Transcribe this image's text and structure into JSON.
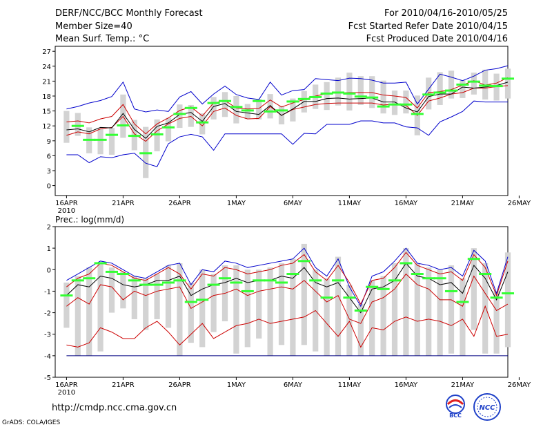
{
  "header": {
    "title": "DERF/NCC/BCC Monthly Forecast",
    "member_size": "Member Size=40",
    "variable": "Mean Surf. Temp.: °C",
    "forecast_range": "For 2010/04/16-2010/05/25",
    "started_date": "Fcst Started Refer Date 2010/04/15",
    "produced_date": "Fcst Produced Date 2010/04/16"
  },
  "footer": {
    "url": "http://cmdp.ncc.cma.gov.cn",
    "credit": "GrADS: COLA/IGES"
  },
  "logos": {
    "left_text": "BCC",
    "right_text": "NCC"
  },
  "colors": {
    "envelope": "#0000cc",
    "band": "#cc0000",
    "mean": "#000000",
    "observed": "#33ff33",
    "box": "#d3d3d3",
    "baseline": "#000080"
  },
  "chart_data": [
    {
      "type": "line",
      "title": "Mean Surf. Temp.: °C",
      "x_ticks": [
        "16APR",
        "21APR",
        "26APR",
        "1MAY",
        "6MAY",
        "11MAY",
        "16MAY",
        "21MAY",
        "26MAY"
      ],
      "x_sublabel": "2010",
      "ylim": [
        -2,
        28
      ],
      "y_ticks": [
        0,
        3,
        6,
        9,
        12,
        15,
        18,
        21,
        24,
        27
      ],
      "series": [
        {
          "name": "max",
          "values": [
            6.2,
            6.2,
            4.6,
            5.8,
            5.6,
            6.2,
            6.5,
            4.5,
            3.8,
            8.4,
            9.8,
            10.3,
            9.8,
            7.1,
            10.4,
            10.4,
            10.4,
            10.4,
            10.4,
            10.4,
            8.3,
            10.5,
            10.4,
            12.3,
            12.3,
            12.3,
            13.0,
            13.0,
            12.6,
            12.6,
            11.8,
            11.6,
            10.1,
            12.8,
            13.8,
            14.9,
            17.0,
            16.8,
            16.8,
            16.8
          ]
        },
        {
          "name": "max",
          "values": [
            15.4,
            15.9,
            16.6,
            17.1,
            17.9,
            20.8,
            15.4,
            14.8,
            15.2,
            14.9,
            17.8,
            18.9,
            16.4,
            18.4,
            20.0,
            18.3,
            17.6,
            17.3,
            20.8,
            18.2,
            19.1,
            19.3,
            21.5,
            21.3,
            21.1,
            21.6,
            21.5,
            21.2,
            20.6,
            20.6,
            20.8,
            16.4,
            19.4,
            22.4,
            21.8,
            21.1,
            22.0,
            23.2,
            23.5,
            24.1
          ]
        },
        {
          "name": "max",
          "values": [
            10.1,
            10.8,
            10.4,
            11.4,
            11.7,
            13.9,
            10.4,
            8.9,
            11.0,
            12.4,
            13.5,
            13.9,
            12.0,
            14.9,
            15.6,
            14.1,
            13.4,
            13.5,
            15.9,
            14.1,
            15.3,
            15.8,
            16.3,
            16.5,
            16.6,
            16.6,
            16.6,
            16.6,
            16.2,
            16.4,
            16.1,
            14.1,
            17.0,
            17.6,
            18.4,
            18.7,
            19.6,
            19.6,
            19.9,
            20.1
          ]
        },
        {
          "name": "max",
          "values": [
            12.8,
            13.0,
            12.6,
            13.4,
            13.9,
            16.3,
            12.4,
            10.4,
            12.4,
            13.6,
            15.1,
            15.8,
            14.0,
            16.6,
            17.1,
            15.6,
            15.4,
            15.5,
            17.2,
            15.8,
            16.6,
            17.3,
            18.0,
            18.5,
            18.6,
            18.7,
            18.7,
            18.7,
            18.2,
            18.0,
            17.7,
            15.6,
            18.7,
            18.9,
            19.3,
            20.2,
            21.1,
            20.2,
            20.6,
            21.7
          ]
        },
        {
          "name": "max",
          "values": [
            11.2,
            11.4,
            10.8,
            11.7,
            11.6,
            14.5,
            11.3,
            9.5,
            11.9,
            12.6,
            14.3,
            14.7,
            12.9,
            15.9,
            16.5,
            14.9,
            14.6,
            14.3,
            16.1,
            14.1,
            15.4,
            16.9,
            16.9,
            17.5,
            17.6,
            17.4,
            17.5,
            17.6,
            16.8,
            16.8,
            15.6,
            14.8,
            17.9,
            18.4,
            18.4,
            19.8,
            19.6,
            19.8,
            20.1,
            20.8
          ]
        },
        {
          "name": "max",
          "values": [
            null,
            12.0,
            9.2,
            9.2,
            10.2,
            12.1,
            10.0,
            6.5,
            10.3,
            11.7,
            14.4,
            15.6,
            12.7,
            16.6,
            17.0,
            15.8,
            15.1,
            17.0,
            14.9,
            15.1,
            16.9,
            17.4,
            17.8,
            18.5,
            18.7,
            18.5,
            17.9,
            17.7,
            15.9,
            16.3,
            16.3,
            14.4,
            18.3,
            18.7,
            19.1,
            20.3,
            20.9,
            20.1,
            20.0,
            21.5
          ]
        },
        {
          "name": "box_high",
          "values": [
            15.0,
            14.6,
            11.7,
            11.4,
            11.6,
            18.3,
            13.2,
            11.8,
            13.3,
            13.6,
            16.3,
            16.2,
            14.5,
            17.8,
            18.8,
            18.0,
            16.4,
            17.4,
            18.4,
            16.0,
            17.5,
            19.0,
            20.3,
            20.8,
            21.7,
            22.7,
            22.0,
            22.0,
            21.1,
            19.1,
            19.1,
            18.1,
            21.7,
            22.8,
            23.1,
            21.2,
            22.7,
            23.3,
            22.5,
            23.5
          ]
        },
        {
          "name": "box_low",
          "values": [
            8.6,
            10.0,
            6.5,
            6.3,
            6.2,
            9.6,
            7.1,
            1.5,
            6.9,
            8.9,
            11.6,
            11.8,
            10.3,
            13.3,
            13.8,
            12.5,
            13.4,
            13.3,
            13.5,
            12.3,
            12.9,
            14.7,
            15.4,
            15.2,
            16.1,
            15.1,
            16.2,
            15.6,
            14.5,
            14.2,
            14.5,
            10.1,
            15.3,
            16.2,
            17.5,
            17.6,
            18.3,
            17.3,
            17.1,
            17.5
          ]
        }
      ]
    },
    {
      "type": "line",
      "title": "Prec.: log(mm/d)",
      "x_ticks": [
        "16APR",
        "21APR",
        "26APR",
        "1MAY",
        "6MAY",
        "11MAY",
        "16MAY",
        "21MAY",
        "26MAY"
      ],
      "x_sublabel": "2010",
      "ylim": [
        -5,
        2
      ],
      "y_ticks": [
        -5,
        -4,
        -3,
        -2,
        -1,
        0,
        1,
        2
      ],
      "series": [
        {
          "name": "min",
          "values": [
            -3.5,
            -3.6,
            -3.4,
            -2.7,
            -2.9,
            -3.2,
            -3.2,
            -2.7,
            -2.4,
            -2.9,
            -3.5,
            -3.0,
            -2.5,
            -3.2,
            -2.9,
            -2.6,
            -2.5,
            -2.3,
            -2.5,
            -2.4,
            -2.3,
            -2.2,
            -1.9,
            -2.5,
            -3.1,
            -2.4,
            -3.6,
            -2.7,
            -2.8,
            -2.4,
            -2.2,
            -2.4,
            -2.3,
            -2.4,
            -2.6,
            -2.3,
            -3.1,
            -1.7,
            -3.1,
            -3.0
          ]
        },
        {
          "name": "max",
          "values": [
            -0.5,
            -0.2,
            0.1,
            0.4,
            0.3,
            0.0,
            -0.3,
            -0.4,
            -0.1,
            0.2,
            0.3,
            -0.7,
            0.0,
            -0.1,
            0.4,
            0.3,
            0.1,
            0.2,
            0.3,
            0.4,
            0.5,
            1.0,
            0.1,
            -0.3,
            0.5,
            -0.8,
            -1.7,
            -0.3,
            -0.1,
            0.4,
            1.0,
            0.3,
            0.2,
            0.0,
            0.1,
            -0.3,
            0.9,
            0.4,
            -1.1,
            0.6
          ]
        },
        {
          "name": "band_low",
          "values": [
            -1.7,
            -1.3,
            -1.6,
            -0.7,
            -0.8,
            -1.4,
            -1.0,
            -1.2,
            -1.0,
            -0.9,
            -0.8,
            -1.8,
            -1.5,
            -1.2,
            -1.1,
            -0.9,
            -1.2,
            -1.0,
            -0.9,
            -0.8,
            -0.9,
            -0.5,
            -1.0,
            -1.5,
            -1.2,
            -2.3,
            -2.5,
            -1.5,
            -1.3,
            -0.9,
            -0.2,
            -0.7,
            -0.9,
            -1.4,
            -1.4,
            -1.7,
            -0.3,
            -1.1,
            -1.9,
            -1.6
          ]
        },
        {
          "name": "band_high",
          "values": [
            -0.8,
            -0.4,
            -0.2,
            0.3,
            0.2,
            -0.1,
            -0.4,
            -0.5,
            -0.2,
            0.1,
            -0.2,
            -0.9,
            -0.2,
            -0.3,
            0.1,
            0.0,
            -0.2,
            -0.1,
            0.0,
            0.2,
            0.3,
            0.7,
            -0.1,
            -0.5,
            0.2,
            -0.6,
            -1.6,
            -0.5,
            -0.4,
            0.1,
            0.8,
            0.2,
            0.0,
            -0.2,
            -0.1,
            -0.5,
            0.7,
            0.1,
            -1.2,
            0.4
          ]
        },
        {
          "name": "mean",
          "values": [
            -1.2,
            -0.7,
            -0.8,
            -0.3,
            -0.4,
            -0.7,
            -0.8,
            -0.7,
            -0.5,
            -0.5,
            -0.3,
            -1.2,
            -0.9,
            -0.7,
            -0.6,
            -0.4,
            -0.6,
            -0.5,
            -0.5,
            -0.3,
            -0.4,
            0.1,
            -0.6,
            -0.8,
            -0.6,
            -1.3,
            -2.0,
            -0.9,
            -0.8,
            -0.5,
            0.3,
            -0.3,
            -0.4,
            -0.7,
            -0.6,
            -1.1,
            0.2,
            -0.4,
            -1.4,
            -0.1
          ]
        },
        {
          "name": "observed",
          "values": [
            -1.2,
            -0.5,
            -0.4,
            0.3,
            -0.1,
            -0.2,
            -0.5,
            -0.7,
            -0.7,
            -0.6,
            -0.5,
            -1.5,
            -1.4,
            -0.7,
            -0.4,
            -0.6,
            -1.0,
            -0.5,
            -0.5,
            -0.6,
            -0.2,
            0.4,
            -0.5,
            -1.3,
            -0.5,
            -1.3,
            -1.9,
            -0.8,
            -0.9,
            -0.5,
            0.3,
            -0.2,
            -0.4,
            -0.4,
            -1.0,
            -1.5,
            0.5,
            -0.2,
            -1.3,
            -1.1
          ]
        },
        {
          "name": "box_high",
          "values": [
            -0.6,
            -0.3,
            0.1,
            0.3,
            0.1,
            -0.1,
            -0.3,
            -0.4,
            -0.2,
            0.2,
            0.3,
            -0.6,
            0.0,
            -0.2,
            0.2,
            0.2,
            0.0,
            0.0,
            0.1,
            0.3,
            0.5,
            1.2,
            0.0,
            -0.4,
            0.6,
            -0.7,
            -1.6,
            -0.5,
            -0.3,
            0.3,
            1.0,
            0.3,
            0.1,
            0.0,
            0.2,
            -0.4,
            1.0,
            0.3,
            -1.0,
            0.8
          ]
        },
        {
          "name": "box_low",
          "values": [
            -2.7,
            -4.0,
            -4.0,
            -3.8,
            -2.0,
            -1.8,
            -2.3,
            -2.8,
            -2.3,
            -2.7,
            -4.0,
            -3.4,
            -3.6,
            -2.9,
            -2.4,
            -3.9,
            -3.6,
            -3.2,
            -4.0,
            -3.5,
            -4.0,
            -3.5,
            -3.8,
            -4.0,
            -4.0,
            -4.0,
            -4.0,
            -4.0,
            -4.0,
            -4.0,
            -4.0,
            -4.0,
            -4.0,
            -4.0,
            -3.9,
            -4.0,
            -2.8,
            -3.9,
            -3.9,
            -3.6
          ]
        },
        {
          "name": "baseline",
          "values": [
            -4.0
          ]
        }
      ]
    }
  ]
}
